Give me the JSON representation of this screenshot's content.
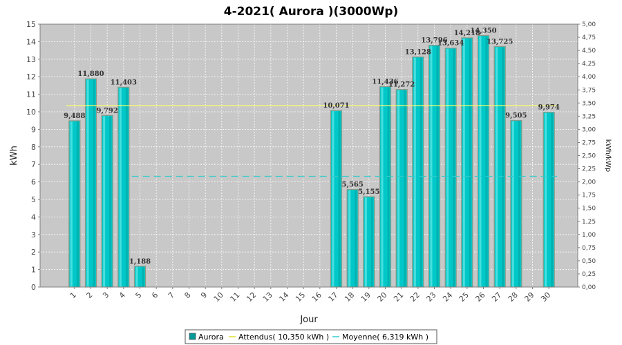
{
  "chart_data": {
    "type": "bar",
    "title": "4-2021( Aurora )(3000Wp)",
    "xlabel": "Jour",
    "ylabel": "kWh",
    "y2label": "kWh/kWp",
    "ylim": [
      0,
      15
    ],
    "y2lim": [
      0,
      5
    ],
    "categories": [
      "1",
      "2",
      "3",
      "4",
      "5",
      "6",
      "7",
      "8",
      "9",
      "10",
      "11",
      "12",
      "13",
      "14",
      "15",
      "16",
      "17",
      "18",
      "19",
      "20",
      "21",
      "22",
      "23",
      "24",
      "25",
      "26",
      "27",
      "28",
      "29",
      "30"
    ],
    "series": [
      {
        "name": "Aurora",
        "color": "#00c8c8",
        "values": [
          9.488,
          11.88,
          9.792,
          11.403,
          1.188,
          null,
          null,
          null,
          null,
          null,
          null,
          null,
          null,
          null,
          null,
          null,
          10.071,
          5.565,
          5.155,
          11.436,
          11.272,
          13.128,
          13.796,
          13.634,
          14.218,
          14.35,
          13.725,
          9.505,
          null,
          9.974
        ],
        "labels": [
          "9,488",
          "11,880",
          "9,792",
          "11,403",
          "1,188",
          "",
          "",
          "",
          "",
          "",
          "",
          "",
          "",
          "",
          "",
          "",
          "10,071",
          "5,565",
          "5,155",
          "11,436",
          "11,272",
          "13,128",
          "13,796",
          "13,634",
          "14,218",
          "14,350",
          "13,725",
          "9,505",
          "",
          "9,974"
        ]
      }
    ],
    "reference_lines": [
      {
        "name": "Attendus( 10,350 kWh )",
        "value": 10.35,
        "color": "#ffff66",
        "style": "solid",
        "x_from_index": 0,
        "x_to_index": 29
      },
      {
        "name": "Moyenne( 6,319 kWh )",
        "value": 6.319,
        "color": "#33cccc",
        "style": "dashed",
        "x_from_index": 4,
        "x_to_index": 29
      }
    ],
    "y_ticks": [
      "0",
      "1",
      "2",
      "3",
      "4",
      "5",
      "6",
      "7",
      "8",
      "9",
      "10",
      "11",
      "12",
      "13",
      "14",
      "15"
    ],
    "y2_ticks": [
      "0,00",
      "0,25",
      "0,50",
      "0,75",
      "1,00",
      "1,25",
      "1,50",
      "1,75",
      "2,00",
      "2,25",
      "2,50",
      "2,75",
      "3,00",
      "3,25",
      "3,50",
      "3,75",
      "4,00",
      "4,25",
      "4,50",
      "4,75",
      "5,00"
    ],
    "grid": true,
    "legend": "bottom",
    "colors": {
      "plot_bg": "#c8c8c8",
      "grid": "#ffffff",
      "bar": "#00c8c8",
      "bar_edge": "#8a9a8a"
    }
  }
}
